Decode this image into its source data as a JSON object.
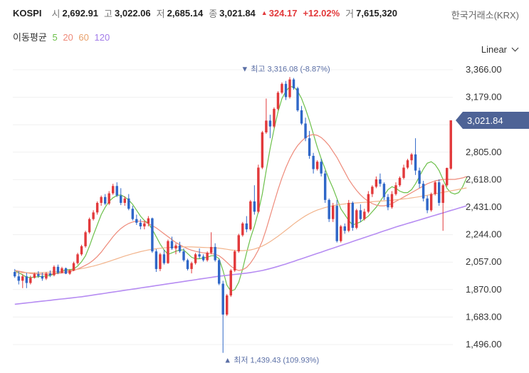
{
  "header": {
    "symbol": "KOSPI",
    "open_label": "시",
    "open": "2,692.91",
    "high_label": "고",
    "high": "3,022.06",
    "low_label": "저",
    "low": "2,685.14",
    "close_label": "종",
    "close": "3,021.84",
    "change_arrow": "▲",
    "change": "324.17",
    "change_pct": "+12.02%",
    "volume_label": "거",
    "volume": "7,615,320",
    "exchange": "한국거래소(KRX)"
  },
  "ma_legend": {
    "title": "이동평균",
    "p5": "5",
    "p20": "20",
    "p60": "60",
    "p120": "120"
  },
  "scale_toggle": {
    "label": "Linear"
  },
  "colors": {
    "up": "#e2393b",
    "down": "#2f67c8",
    "ma5": "#6cc04a",
    "ma20": "#ee8a7a",
    "ma60": "#f2b48c",
    "ma120": "#b68cf2",
    "price_tag": "#4e6396"
  },
  "chart_data": {
    "type": "candlestick",
    "ylim": [
      1400,
      3440
    ],
    "y_ticks": [
      "3,366.00",
      "3,179.00",
      "2,992.00",
      "2,805.00",
      "2,618.00",
      "2,431.00",
      "2,244.00",
      "2,057.00",
      "1,870.00",
      "1,683.00",
      "1,496.00"
    ],
    "y_tick_values": [
      3366,
      3179,
      2992,
      2805,
      2618,
      2431,
      2244,
      2057,
      1870,
      1683,
      1496
    ],
    "last_price_label": "3,021.84",
    "last_price": 3021.84,
    "high_annotation": {
      "arrow": "▼",
      "label": "최고",
      "value": "3,316.08",
      "pct": "(-8.87%)"
    },
    "low_annotation": {
      "arrow": "▲",
      "label": "최저",
      "value": "1,439.43",
      "pct": "(109.93%)"
    },
    "candles": [
      {
        "o": 1990,
        "h": 2010,
        "l": 1950,
        "c": 1960
      },
      {
        "o": 1960,
        "h": 1995,
        "l": 1905,
        "c": 1930
      },
      {
        "o": 1930,
        "h": 1975,
        "l": 1880,
        "c": 1960
      },
      {
        "o": 1960,
        "h": 1985,
        "l": 1880,
        "c": 1915
      },
      {
        "o": 1915,
        "h": 1965,
        "l": 1905,
        "c": 1950
      },
      {
        "o": 1950,
        "h": 1985,
        "l": 1945,
        "c": 1975
      },
      {
        "o": 1975,
        "h": 1995,
        "l": 1950,
        "c": 1962
      },
      {
        "o": 1962,
        "h": 1985,
        "l": 1930,
        "c": 1945
      },
      {
        "o": 1945,
        "h": 1990,
        "l": 1935,
        "c": 1980
      },
      {
        "o": 1980,
        "h": 2000,
        "l": 1955,
        "c": 1968
      },
      {
        "o": 1968,
        "h": 2035,
        "l": 1960,
        "c": 2025
      },
      {
        "o": 2025,
        "h": 2040,
        "l": 1975,
        "c": 1985
      },
      {
        "o": 1985,
        "h": 2025,
        "l": 1980,
        "c": 2015
      },
      {
        "o": 2015,
        "h": 2020,
        "l": 1975,
        "c": 1978
      },
      {
        "o": 1978,
        "h": 2010,
        "l": 1970,
        "c": 2000
      },
      {
        "o": 2000,
        "h": 2060,
        "l": 1995,
        "c": 2050
      },
      {
        "o": 2050,
        "h": 2120,
        "l": 2040,
        "c": 2110
      },
      {
        "o": 2110,
        "h": 2175,
        "l": 2100,
        "c": 2165
      },
      {
        "o": 2165,
        "h": 2270,
        "l": 2155,
        "c": 2260
      },
      {
        "o": 2260,
        "h": 2360,
        "l": 2250,
        "c": 2350
      },
      {
        "o": 2350,
        "h": 2410,
        "l": 2340,
        "c": 2395
      },
      {
        "o": 2395,
        "h": 2470,
        "l": 2380,
        "c": 2460
      },
      {
        "o": 2460,
        "h": 2510,
        "l": 2440,
        "c": 2500
      },
      {
        "o": 2500,
        "h": 2520,
        "l": 2445,
        "c": 2455
      },
      {
        "o": 2455,
        "h": 2540,
        "l": 2445,
        "c": 2525
      },
      {
        "o": 2525,
        "h": 2590,
        "l": 2515,
        "c": 2575
      },
      {
        "o": 2575,
        "h": 2600,
        "l": 2500,
        "c": 2510
      },
      {
        "o": 2510,
        "h": 2560,
        "l": 2445,
        "c": 2460
      },
      {
        "o": 2460,
        "h": 2505,
        "l": 2440,
        "c": 2490
      },
      {
        "o": 2490,
        "h": 2520,
        "l": 2410,
        "c": 2420
      },
      {
        "o": 2420,
        "h": 2440,
        "l": 2340,
        "c": 2350
      },
      {
        "o": 2350,
        "h": 2380,
        "l": 2310,
        "c": 2325
      },
      {
        "o": 2325,
        "h": 2350,
        "l": 2280,
        "c": 2300
      },
      {
        "o": 2300,
        "h": 2340,
        "l": 2280,
        "c": 2320
      },
      {
        "o": 2320,
        "h": 2370,
        "l": 2300,
        "c": 2355
      },
      {
        "o": 2355,
        "h": 2360,
        "l": 2120,
        "c": 2130
      },
      {
        "o": 2130,
        "h": 2145,
        "l": 1990,
        "c": 2010
      },
      {
        "o": 2010,
        "h": 2120,
        "l": 1995,
        "c": 2110
      },
      {
        "o": 2110,
        "h": 2140,
        "l": 2040,
        "c": 2050
      },
      {
        "o": 2050,
        "h": 2210,
        "l": 2045,
        "c": 2200
      },
      {
        "o": 2200,
        "h": 2230,
        "l": 2140,
        "c": 2150
      },
      {
        "o": 2150,
        "h": 2185,
        "l": 2110,
        "c": 2170
      },
      {
        "o": 2170,
        "h": 2195,
        "l": 2120,
        "c": 2130
      },
      {
        "o": 2130,
        "h": 2150,
        "l": 2060,
        "c": 2070
      },
      {
        "o": 2070,
        "h": 2080,
        "l": 2000,
        "c": 2010
      },
      {
        "o": 2010,
        "h": 2060,
        "l": 1980,
        "c": 2050
      },
      {
        "o": 2050,
        "h": 2120,
        "l": 2040,
        "c": 2110
      },
      {
        "o": 2110,
        "h": 2150,
        "l": 2080,
        "c": 2095
      },
      {
        "o": 2095,
        "h": 2110,
        "l": 2060,
        "c": 2070
      },
      {
        "o": 2070,
        "h": 2130,
        "l": 2060,
        "c": 2120
      },
      {
        "o": 2120,
        "h": 2260,
        "l": 2110,
        "c": 2160
      },
      {
        "o": 2160,
        "h": 2185,
        "l": 2060,
        "c": 2070
      },
      {
        "o": 2070,
        "h": 2080,
        "l": 1900,
        "c": 1910
      },
      {
        "o": 1910,
        "h": 1930,
        "l": 1439.43,
        "c": 1700
      },
      {
        "o": 1700,
        "h": 1840,
        "l": 1690,
        "c": 1830
      },
      {
        "o": 1830,
        "h": 2010,
        "l": 1820,
        "c": 2000
      },
      {
        "o": 2000,
        "h": 2140,
        "l": 1990,
        "c": 2130
      },
      {
        "o": 2130,
        "h": 2250,
        "l": 2120,
        "c": 2240
      },
      {
        "o": 2240,
        "h": 2330,
        "l": 2230,
        "c": 2320
      },
      {
        "o": 2320,
        "h": 2370,
        "l": 2260,
        "c": 2280
      },
      {
        "o": 2280,
        "h": 2480,
        "l": 2270,
        "c": 2470
      },
      {
        "o": 2470,
        "h": 2580,
        "l": 2380,
        "c": 2400
      },
      {
        "o": 2400,
        "h": 2720,
        "l": 2390,
        "c": 2700
      },
      {
        "o": 2700,
        "h": 2950,
        "l": 2690,
        "c": 2940
      },
      {
        "o": 2940,
        "h": 3170,
        "l": 2930,
        "c": 3020
      },
      {
        "o": 3020,
        "h": 3060,
        "l": 2900,
        "c": 2980
      },
      {
        "o": 2980,
        "h": 3110,
        "l": 2970,
        "c": 3100
      },
      {
        "o": 3100,
        "h": 3220,
        "l": 3090,
        "c": 3210
      },
      {
        "o": 3210,
        "h": 3280,
        "l": 3200,
        "c": 3270
      },
      {
        "o": 3270,
        "h": 3290,
        "l": 3160,
        "c": 3180
      },
      {
        "o": 3180,
        "h": 3316.08,
        "l": 3170,
        "c": 3300
      },
      {
        "o": 3300,
        "h": 3310,
        "l": 3230,
        "c": 3240
      },
      {
        "o": 3240,
        "h": 3250,
        "l": 3080,
        "c": 3090
      },
      {
        "o": 3090,
        "h": 3120,
        "l": 2990,
        "c": 3000
      },
      {
        "o": 3000,
        "h": 3040,
        "l": 2880,
        "c": 2900
      },
      {
        "o": 2900,
        "h": 2950,
        "l": 2760,
        "c": 2780
      },
      {
        "o": 2780,
        "h": 2800,
        "l": 2660,
        "c": 2690
      },
      {
        "o": 2690,
        "h": 2750,
        "l": 2680,
        "c": 2740
      },
      {
        "o": 2740,
        "h": 2760,
        "l": 2640,
        "c": 2660
      },
      {
        "o": 2660,
        "h": 2680,
        "l": 2460,
        "c": 2480
      },
      {
        "o": 2480,
        "h": 2490,
        "l": 2330,
        "c": 2350
      },
      {
        "o": 2350,
        "h": 2460,
        "l": 2330,
        "c": 2440
      },
      {
        "o": 2440,
        "h": 2480,
        "l": 2190,
        "c": 2200
      },
      {
        "o": 2200,
        "h": 2310,
        "l": 2190,
        "c": 2300
      },
      {
        "o": 2300,
        "h": 2320,
        "l": 2250,
        "c": 2270
      },
      {
        "o": 2270,
        "h": 2480,
        "l": 2260,
        "c": 2460
      },
      {
        "o": 2460,
        "h": 2470,
        "l": 2270,
        "c": 2290
      },
      {
        "o": 2290,
        "h": 2420,
        "l": 2280,
        "c": 2410
      },
      {
        "o": 2410,
        "h": 2450,
        "l": 2330,
        "c": 2350
      },
      {
        "o": 2350,
        "h": 2420,
        "l": 2340,
        "c": 2400
      },
      {
        "o": 2400,
        "h": 2540,
        "l": 2390,
        "c": 2520
      },
      {
        "o": 2520,
        "h": 2580,
        "l": 2500,
        "c": 2570
      },
      {
        "o": 2570,
        "h": 2640,
        "l": 2560,
        "c": 2620
      },
      {
        "o": 2620,
        "h": 2660,
        "l": 2570,
        "c": 2590
      },
      {
        "o": 2590,
        "h": 2600,
        "l": 2480,
        "c": 2500
      },
      {
        "o": 2500,
        "h": 2520,
        "l": 2410,
        "c": 2430
      },
      {
        "o": 2430,
        "h": 2540,
        "l": 2420,
        "c": 2520
      },
      {
        "o": 2520,
        "h": 2600,
        "l": 2510,
        "c": 2580
      },
      {
        "o": 2580,
        "h": 2640,
        "l": 2570,
        "c": 2630
      },
      {
        "o": 2630,
        "h": 2720,
        "l": 2620,
        "c": 2700
      },
      {
        "o": 2700,
        "h": 2760,
        "l": 2690,
        "c": 2750
      },
      {
        "o": 2750,
        "h": 2800,
        "l": 2720,
        "c": 2790
      },
      {
        "o": 2790,
        "h": 2900,
        "l": 2650,
        "c": 2680
      },
      {
        "o": 2680,
        "h": 2700,
        "l": 2560,
        "c": 2590
      },
      {
        "o": 2590,
        "h": 2610,
        "l": 2470,
        "c": 2490
      },
      {
        "o": 2490,
        "h": 2510,
        "l": 2390,
        "c": 2410
      },
      {
        "o": 2410,
        "h": 2530,
        "l": 2400,
        "c": 2520
      },
      {
        "o": 2520,
        "h": 2610,
        "l": 2510,
        "c": 2600
      },
      {
        "o": 2600,
        "h": 2620,
        "l": 2440,
        "c": 2460
      },
      {
        "o": 2460,
        "h": 2590,
        "l": 2270,
        "c": 2580
      },
      {
        "o": 2580,
        "h": 2700,
        "l": 2570,
        "c": 2697.67
      },
      {
        "o": 2692.91,
        "h": 3022.06,
        "l": 2685.14,
        "c": 3021.84
      }
    ],
    "series": [
      {
        "name": "5",
        "color": "#6cc04a",
        "values": [
          2000,
          1985,
          1970,
          1955,
          1952,
          1955,
          1958,
          1960,
          1962,
          1966,
          1975,
          1985,
          1995,
          2005,
          2005,
          2010,
          2030,
          2060,
          2100,
          2165,
          2240,
          2310,
          2380,
          2430,
          2470,
          2495,
          2510,
          2515,
          2500,
          2480,
          2450,
          2410,
          2370,
          2340,
          2320,
          2280,
          2230,
          2180,
          2140,
          2110,
          2120,
          2130,
          2140,
          2140,
          2115,
          2090,
          2080,
          2080,
          2085,
          2090,
          2100,
          2100,
          2080,
          2000,
          1900,
          1860,
          1870,
          1920,
          2010,
          2120,
          2220,
          2300,
          2400,
          2520,
          2680,
          2830,
          2960,
          3080,
          3170,
          3220,
          3250,
          3250,
          3220,
          3170,
          3100,
          3020,
          2930,
          2840,
          2760,
          2690,
          2620,
          2560,
          2490,
          2420,
          2380,
          2340,
          2310,
          2320,
          2330,
          2350,
          2370,
          2400,
          2430,
          2470,
          2510,
          2550,
          2570,
          2560,
          2540,
          2530,
          2530,
          2550,
          2590,
          2640,
          2690,
          2730,
          2740,
          2720,
          2680,
          2620,
          2560,
          2530,
          2520,
          2530,
          2570,
          2630
        ]
      },
      {
        "name": "20",
        "color": "#ee8a7a",
        "values": [
          2000,
          1995,
          1990,
          1985,
          1980,
          1978,
          1976,
          1975,
          1975,
          1976,
          1978,
          1980,
          1983,
          1987,
          1992,
          2000,
          2010,
          2022,
          2035,
          2050,
          2070,
          2095,
          2125,
          2160,
          2195,
          2230,
          2260,
          2285,
          2305,
          2320,
          2330,
          2335,
          2335,
          2330,
          2320,
          2305,
          2290,
          2270,
          2250,
          2230,
          2210,
          2190,
          2175,
          2160,
          2148,
          2138,
          2130,
          2125,
          2120,
          2118,
          2115,
          2110,
          2100,
          2080,
          2055,
          2030,
          2010,
          2000,
          2005,
          2020,
          2050,
          2090,
          2140,
          2200,
          2280,
          2370,
          2460,
          2550,
          2630,
          2700,
          2760,
          2810,
          2850,
          2880,
          2905,
          2920,
          2925,
          2920,
          2905,
          2880,
          2850,
          2810,
          2770,
          2720,
          2670,
          2620,
          2580,
          2545,
          2515,
          2490,
          2470,
          2455,
          2445,
          2440,
          2440,
          2445,
          2455,
          2470,
          2485,
          2500,
          2515,
          2530,
          2545,
          2560,
          2575,
          2590,
          2600,
          2610,
          2615,
          2620,
          2620,
          2620,
          2620,
          2625,
          2630,
          2640
        ]
      },
      {
        "name": "60",
        "color": "#f2b48c",
        "values": [
          1985,
          1985,
          1985,
          1985,
          1985,
          1985,
          1985,
          1986,
          1987,
          1988,
          1990,
          1992,
          1994,
          1997,
          2000,
          2004,
          2008,
          2013,
          2018,
          2024,
          2030,
          2037,
          2045,
          2053,
          2062,
          2071,
          2080,
          2089,
          2098,
          2106,
          2114,
          2121,
          2128,
          2134,
          2140,
          2144,
          2148,
          2151,
          2154,
          2156,
          2158,
          2159,
          2160,
          2160,
          2160,
          2160,
          2159,
          2158,
          2157,
          2156,
          2155,
          2154,
          2152,
          2148,
          2144,
          2140,
          2137,
          2135,
          2135,
          2137,
          2140,
          2146,
          2155,
          2166,
          2180,
          2196,
          2214,
          2233,
          2253,
          2274,
          2295,
          2316,
          2336,
          2355,
          2372,
          2387,
          2400,
          2411,
          2420,
          2428,
          2435,
          2441,
          2446,
          2450,
          2453,
          2456,
          2458,
          2460,
          2462,
          2464,
          2466,
          2468,
          2470,
          2472,
          2474,
          2476,
          2478,
          2481,
          2484,
          2487,
          2490,
          2494,
          2498,
          2502,
          2507,
          2512,
          2517,
          2522,
          2527,
          2532,
          2537,
          2542,
          2547,
          2552,
          2557,
          2562
        ]
      },
      {
        "name": "120",
        "color": "#b68cf2",
        "values": [
          1770,
          1773,
          1776,
          1779,
          1782,
          1785,
          1788,
          1791,
          1794,
          1797,
          1800,
          1803,
          1806,
          1809,
          1812,
          1815,
          1818,
          1821,
          1825,
          1829,
          1833,
          1837,
          1841,
          1845,
          1849,
          1853,
          1857,
          1861,
          1865,
          1869,
          1873,
          1877,
          1881,
          1885,
          1889,
          1893,
          1897,
          1901,
          1905,
          1909,
          1913,
          1917,
          1921,
          1925,
          1929,
          1933,
          1937,
          1941,
          1945,
          1949,
          1953,
          1957,
          1961,
          1964,
          1967,
          1970,
          1973,
          1976,
          1979,
          1982,
          1986,
          1990,
          1995,
          2000,
          2006,
          2013,
          2020,
          2028,
          2036,
          2044,
          2053,
          2062,
          2071,
          2080,
          2089,
          2098,
          2107,
          2116,
          2125,
          2134,
          2143,
          2152,
          2161,
          2170,
          2179,
          2188,
          2197,
          2206,
          2215,
          2224,
          2233,
          2242,
          2251,
          2260,
          2269,
          2278,
          2287,
          2296,
          2304,
          2312,
          2320,
          2328,
          2336,
          2344,
          2352,
          2360,
          2368,
          2376,
          2384,
          2392,
          2400,
          2408,
          2416,
          2424,
          2432,
          2440
        ]
      }
    ]
  }
}
